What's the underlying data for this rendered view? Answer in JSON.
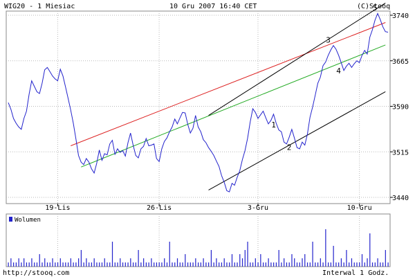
{
  "header": {
    "instrument": "WIG20 - 1 Miesiac",
    "datetime": "10 Gru 2007 16:40 CET",
    "copyright": "(C)Stooq"
  },
  "footer": {
    "url": "http://stooq.com",
    "interval": "Interwal 1 Godz."
  },
  "colors": {
    "price_line": "#2222cc",
    "resistance_line": "#dd2222",
    "support_line": "#22aa22",
    "channel_line": "#000000",
    "volume_bar": "#2222cc",
    "grid": "#b8b8b8"
  },
  "chart_data": [
    {
      "type": "line",
      "ylim": [
        3430,
        3760
      ],
      "y_ticks": [
        "3740",
        "3665",
        "3590",
        "3515",
        "3440"
      ],
      "x_ticks": [
        "19-Lis",
        "26-Lis",
        "3-Gru",
        "10-Gru"
      ],
      "series": [
        {
          "values": [
            3596,
            3585,
            3570,
            3562,
            3556,
            3552,
            3570,
            3582,
            3610,
            3632,
            3623,
            3614,
            3611,
            3628,
            3650,
            3654,
            3647,
            3640,
            3635,
            3632,
            3651,
            3640,
            3622,
            3603,
            3584,
            3562,
            3536,
            3509,
            3498,
            3494,
            3504,
            3498,
            3487,
            3480,
            3496,
            3518,
            3501,
            3512,
            3510,
            3528,
            3534,
            3511,
            3520,
            3514,
            3517,
            3508,
            3530,
            3546,
            3526,
            3509,
            3505,
            3520,
            3524,
            3537,
            3525,
            3526,
            3528,
            3504,
            3499,
            3520,
            3532,
            3538,
            3548,
            3556,
            3569,
            3561,
            3571,
            3580,
            3579,
            3560,
            3546,
            3554,
            3575,
            3556,
            3548,
            3535,
            3530,
            3522,
            3516,
            3509,
            3500,
            3491,
            3476,
            3465,
            3451,
            3449,
            3463,
            3460,
            3473,
            3484,
            3502,
            3517,
            3537,
            3564,
            3586,
            3580,
            3570,
            3576,
            3582,
            3571,
            3561,
            3567,
            3577,
            3562,
            3551,
            3548,
            3531,
            3528,
            3539,
            3552,
            3538,
            3522,
            3520,
            3531,
            3526,
            3544,
            3572,
            3589,
            3608,
            3628,
            3638,
            3657,
            3663,
            3674,
            3683,
            3690,
            3684,
            3674,
            3662,
            3649,
            3656,
            3661,
            3654,
            3660,
            3665,
            3662,
            3674,
            3682,
            3676,
            3704,
            3716,
            3732,
            3743,
            3733,
            3721,
            3713,
            3712
          ]
        }
      ],
      "annotations": [
        {
          "label": "1",
          "x": 102,
          "y": 3555
        },
        {
          "label": "2",
          "x": 108,
          "y": 3518
        },
        {
          "label": "3",
          "x": 123,
          "y": 3695
        },
        {
          "label": "4",
          "x": 127,
          "y": 3644
        },
        {
          "label": "5",
          "x": 141,
          "y": 3748
        }
      ],
      "trendlines": [
        {
          "color": "resistance",
          "points": [
            [
              24,
              3525
            ],
            [
              145,
              3728
            ]
          ]
        },
        {
          "color": "support",
          "points": [
            [
              28,
              3490
            ],
            [
              145,
              3691
            ]
          ]
        },
        {
          "color": "channel",
          "points": [
            [
              77,
              3452
            ],
            [
              145,
              3614
            ]
          ]
        },
        {
          "color": "channel",
          "points": [
            [
              77,
              3575
            ],
            [
              145,
              3760
            ]
          ]
        }
      ]
    },
    {
      "type": "bar",
      "title": "Wolumen",
      "values": [
        1,
        2,
        1,
        1,
        2,
        1,
        2,
        1,
        1,
        2,
        1,
        1,
        3,
        1,
        2,
        1,
        1,
        2,
        1,
        1,
        2,
        1,
        1,
        1,
        2,
        1,
        1,
        2,
        4,
        1,
        2,
        1,
        1,
        2,
        1,
        1,
        1,
        2,
        1,
        1,
        6,
        1,
        1,
        2,
        1,
        1,
        1,
        2,
        1,
        1,
        4,
        1,
        2,
        1,
        1,
        2,
        1,
        1,
        1,
        1,
        2,
        1,
        6,
        1,
        1,
        2,
        1,
        1,
        3,
        1,
        1,
        1,
        2,
        1,
        1,
        2,
        1,
        1,
        4,
        1,
        2,
        1,
        1,
        2,
        1,
        1,
        3,
        1,
        1,
        3,
        2,
        4,
        6,
        1,
        1,
        2,
        1,
        3,
        1,
        1,
        2,
        1,
        1,
        1,
        4,
        1,
        2,
        1,
        1,
        3,
        2,
        1,
        1,
        2,
        3,
        1,
        1,
        6,
        1,
        1,
        2,
        1,
        9,
        1,
        1,
        5,
        1,
        1,
        2,
        1,
        4,
        1,
        2,
        1,
        1,
        1,
        3,
        1,
        2,
        8,
        1,
        1,
        2,
        1,
        1,
        4,
        1
      ]
    }
  ]
}
